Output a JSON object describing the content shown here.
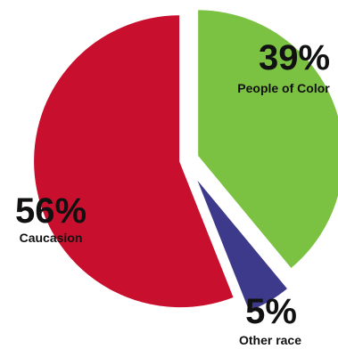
{
  "chart_data": {
    "type": "pie",
    "slices": [
      {
        "label": "People of Color",
        "value": 39,
        "value_label": "39%",
        "color": "#7cc242"
      },
      {
        "label": "Other race",
        "value": 5,
        "value_label": "5%",
        "color": "#3d3a8c"
      },
      {
        "label": "Caucasion",
        "value": 56,
        "value_label": "56%",
        "color": "#c8102e"
      }
    ],
    "exploded": true,
    "legend": "none"
  }
}
